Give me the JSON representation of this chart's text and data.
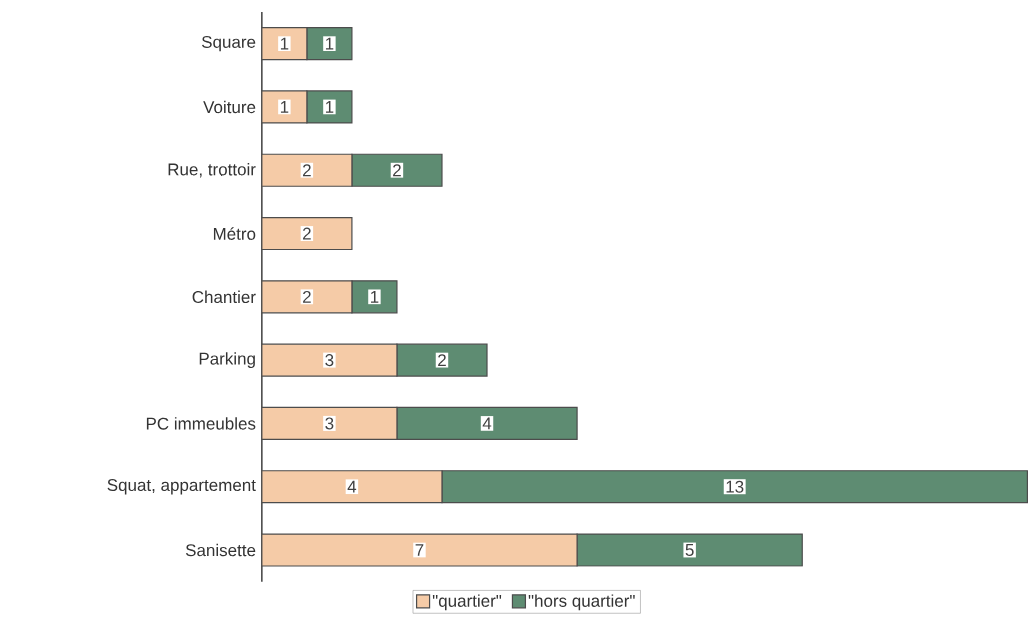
{
  "chart_data": {
    "type": "bar",
    "orientation": "horizontal",
    "stacked": true,
    "data_labels": true,
    "legend": "bottom",
    "categories": [
      "Square",
      "Voiture",
      "Rue, trottoir",
      "Métro",
      "Chantier",
      "Parking",
      "PC immeubles",
      "Squat, appartement",
      "Sanisette"
    ],
    "series": [
      {
        "name": "\"quartier\"",
        "color": "#f5cba7",
        "values": [
          1,
          1,
          2,
          2,
          2,
          3,
          3,
          4,
          7
        ]
      },
      {
        "name": "\"hors quartier\"",
        "color": "#5e8c72",
        "values": [
          1,
          1,
          2,
          null,
          1,
          2,
          4,
          13,
          5
        ]
      }
    ]
  }
}
